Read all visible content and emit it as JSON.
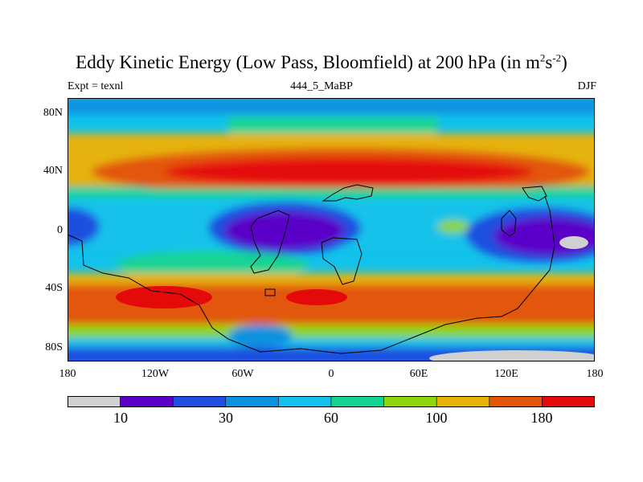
{
  "title": {
    "main": "Eddy Kinetic Energy (Low Pass, Bloomfield) at 200 hPa (in m",
    "sup1": "2",
    "mid": "s",
    "sup2": "-2",
    "close": ")"
  },
  "subtitle_left": "Expt = texnl",
  "subtitle_center": "444_5_MaBP",
  "subtitle_right": "DJF",
  "lat_labels": [
    "80N",
    "40N",
    "0",
    "40S",
    "80S"
  ],
  "lon_labels": [
    "180",
    "120W",
    "60W",
    "0",
    "60E",
    "120E",
    "180"
  ],
  "legend": {
    "colors": [
      "#d0d0d0",
      "#5a00c8",
      "#1e4fe0",
      "#0a92e0",
      "#12c2ea",
      "#14d494",
      "#8ed60e",
      "#e6b20a",
      "#e2560a",
      "#e40a0a"
    ],
    "labels": [
      "10",
      "30",
      "60",
      "100",
      "180"
    ]
  }
}
